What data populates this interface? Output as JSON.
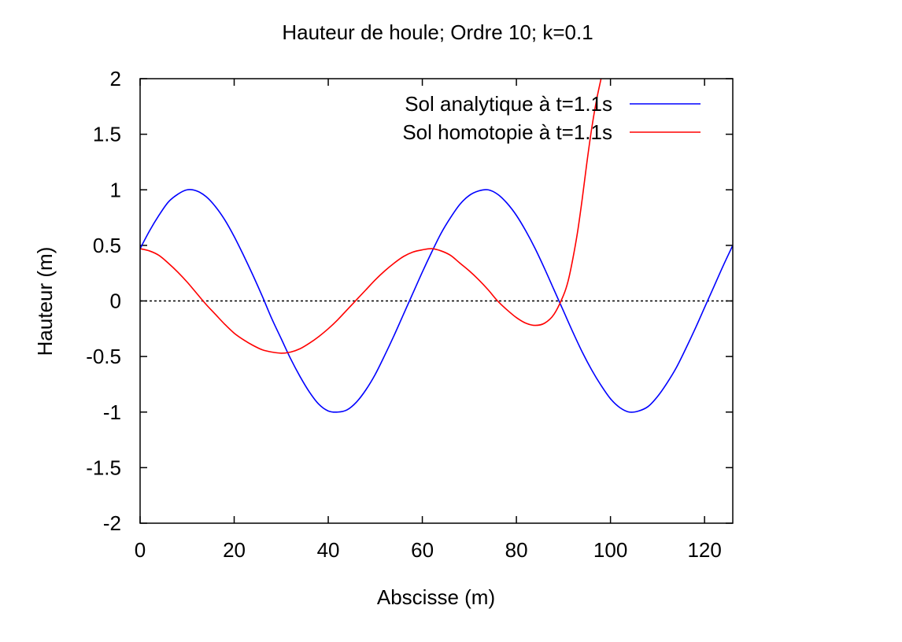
{
  "chart_data": {
    "type": "line",
    "title": "Hauteur de houle; Ordre 10; k=0.1",
    "xlabel": "Abscisse (m)",
    "ylabel": "Hauteur (m)",
    "xlim": [
      0,
      126
    ],
    "ylim": [
      -2,
      2
    ],
    "xticks": [
      0,
      20,
      40,
      60,
      80,
      100,
      120
    ],
    "yticks": [
      2,
      1.5,
      1,
      0.5,
      0,
      -0.5,
      -1,
      -1.5,
      -2
    ],
    "xtick_labels": [
      "0",
      "20",
      "40",
      "60",
      "80",
      "100",
      "120"
    ],
    "ytick_labels": [
      "2",
      "1.5",
      "1",
      "0.5",
      "0",
      "-0.5",
      "-1",
      "-1.5",
      "-2"
    ],
    "grid": false,
    "legend_position": "top-right",
    "zero_line": {
      "y": 0,
      "color": "#000000",
      "style": "dotted"
    },
    "series": [
      {
        "name": "Sol analytique à t=1.1s",
        "color": "#0000ff",
        "x": [
          0,
          2,
          4,
          6,
          8,
          10,
          12,
          14,
          16,
          18,
          20,
          22,
          24,
          26,
          28,
          30,
          32,
          34,
          36,
          38,
          40,
          42,
          44,
          46,
          48,
          50,
          52,
          54,
          56,
          58,
          60,
          62,
          64,
          66,
          68,
          70,
          72,
          74,
          76,
          78,
          80,
          82,
          84,
          86,
          88,
          90,
          92,
          94,
          96,
          98,
          100,
          102,
          104,
          106,
          108,
          110,
          112,
          114,
          116,
          118,
          120,
          122,
          124,
          126
        ],
        "y": [
          0.47,
          0.63,
          0.77,
          0.89,
          0.96,
          1.0,
          0.99,
          0.94,
          0.85,
          0.73,
          0.58,
          0.41,
          0.23,
          0.04,
          -0.16,
          -0.34,
          -0.52,
          -0.68,
          -0.82,
          -0.93,
          -0.99,
          -1.0,
          -0.98,
          -0.91,
          -0.8,
          -0.66,
          -0.49,
          -0.31,
          -0.12,
          0.07,
          0.26,
          0.44,
          0.61,
          0.75,
          0.87,
          0.95,
          0.99,
          1.0,
          0.96,
          0.88,
          0.77,
          0.63,
          0.47,
          0.29,
          0.1,
          -0.09,
          -0.28,
          -0.46,
          -0.62,
          -0.76,
          -0.88,
          -0.96,
          -1.0,
          -0.99,
          -0.95,
          -0.86,
          -0.74,
          -0.6,
          -0.43,
          -0.25,
          -0.06,
          0.13,
          0.32,
          0.5
        ]
      },
      {
        "name": "Sol homotopie à t=1.1s",
        "color": "#ff0000",
        "x": [
          0,
          2,
          4,
          6,
          8,
          10,
          12,
          14,
          16,
          18,
          20,
          22,
          24,
          26,
          28,
          30,
          32,
          34,
          36,
          38,
          40,
          42,
          44,
          46,
          48,
          50,
          52,
          54,
          56,
          58,
          60,
          62,
          64,
          66,
          68,
          70,
          72,
          74,
          76,
          78,
          80,
          82,
          84,
          86,
          88,
          90,
          91,
          92,
          93,
          94,
          95,
          96,
          97,
          98
        ],
        "y": [
          0.47,
          0.45,
          0.41,
          0.34,
          0.26,
          0.17,
          0.07,
          -0.03,
          -0.12,
          -0.21,
          -0.29,
          -0.35,
          -0.4,
          -0.44,
          -0.46,
          -0.47,
          -0.46,
          -0.43,
          -0.38,
          -0.32,
          -0.25,
          -0.17,
          -0.08,
          0.01,
          0.1,
          0.19,
          0.27,
          0.34,
          0.4,
          0.44,
          0.46,
          0.47,
          0.45,
          0.41,
          0.34,
          0.27,
          0.19,
          0.1,
          0.0,
          -0.08,
          -0.15,
          -0.2,
          -0.22,
          -0.2,
          -0.12,
          0.05,
          0.18,
          0.38,
          0.62,
          0.92,
          1.25,
          1.55,
          1.8,
          2.0
        ]
      }
    ]
  }
}
